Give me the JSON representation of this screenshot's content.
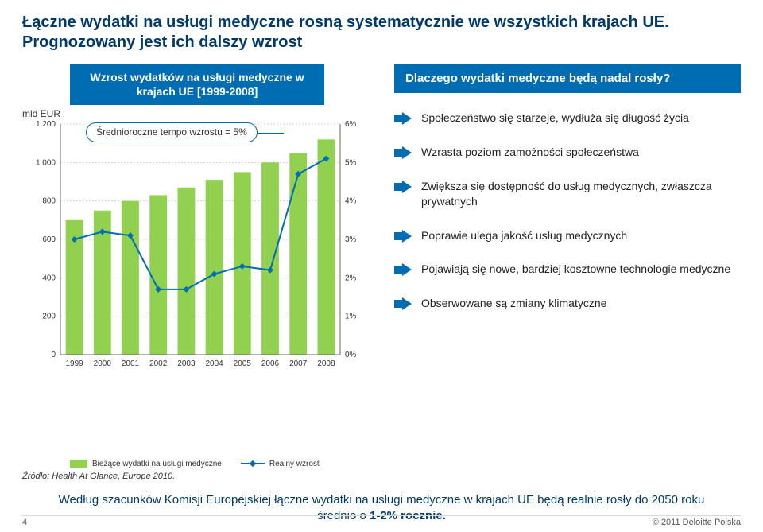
{
  "title": "Łączne wydatki na usługi medyczne rosną systematycznie we wszystkich krajach UE. Prognozowany jest ich dalszy wzrost",
  "chart": {
    "title": "Wzrost wydatków na usługi medyczne w krajach UE [1999-2008]",
    "type": "bar+line",
    "y_left_label": "mld EUR",
    "callout": "Średnioroczne tempo wzrostu = 5%",
    "years": [
      "1999",
      "2000",
      "2001",
      "2002",
      "2003",
      "2004",
      "2005",
      "2006",
      "2007",
      "2008"
    ],
    "bar_values": [
      700,
      750,
      800,
      830,
      870,
      910,
      950,
      1000,
      1050,
      1120
    ],
    "line_values_pct": [
      3.0,
      3.2,
      3.1,
      1.7,
      1.7,
      2.1,
      2.3,
      2.2,
      4.7,
      5.1
    ],
    "y_left_ticks": [
      0,
      200,
      400,
      600,
      800,
      1000,
      1200
    ],
    "y_right_ticks_pct": [
      0,
      1,
      2,
      3,
      4,
      5,
      6
    ],
    "bar_color": "#92d050",
    "line_color": "#006db3",
    "marker_color": "#006db3",
    "grid_color": "#b0b0b0",
    "axis_color": "#666666",
    "tick_font_size": 10,
    "axis_font_size": 12,
    "background_color": "#ffffff",
    "legend": {
      "series1": "Bieżące wydatki na usługi medyczne",
      "series2": "Realny wzrost"
    },
    "source": "Źródło: Health At Glance, Europe 2010."
  },
  "why": {
    "heading": "Dlaczego wydatki medyczne będą nadal rosły?",
    "arrow_color": "#006db3",
    "reasons": [
      "Społeczeństwo się starzeje, wydłuża się długość życia",
      "Wzrasta poziom zamożności społeczeństwa",
      "Zwiększa się dostępność do usług medycznych, zwłaszcza prywatnych",
      "Poprawie ulega jakość usług medycznych",
      "Pojawiają się nowe, bardziej kosztowne technologie medyczne",
      "Obserwowane są zmiany klimatyczne"
    ]
  },
  "bottom_note_pre": "Według szacunków Komisji Europejskiej łączne wydatki na usługi medyczne w krajach UE będą realnie rosły do 2050 roku średnio o ",
  "bottom_note_bold": "1-2% rocznie.",
  "footer": {
    "page": "4",
    "copyright": "© 2011 Deloitte Polska"
  }
}
